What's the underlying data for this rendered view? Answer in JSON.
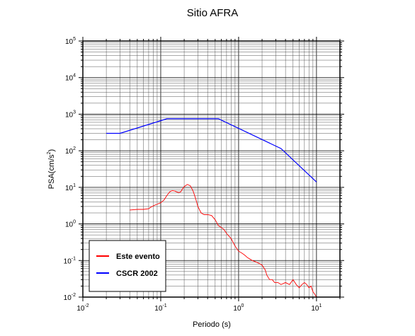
{
  "chart_data": {
    "type": "line",
    "title": "Sitio AFRA",
    "xlabel": "Periodo (s)",
    "ylabel": {
      "base": "PSA(cm/s",
      "sup": "2",
      "tail": ")"
    },
    "x_scale": "log",
    "y_scale": "log",
    "xlim": [
      0.01,
      20
    ],
    "ylim": [
      0.01,
      100000
    ],
    "grid": true,
    "legend_position": "bottom-left",
    "x_ticks": [
      {
        "base": "10",
        "exp": "-2",
        "value": 0.01
      },
      {
        "base": "10",
        "exp": "-1",
        "value": 0.1
      },
      {
        "base": "10",
        "exp": "0",
        "value": 1
      },
      {
        "base": "10",
        "exp": "1",
        "value": 10
      }
    ],
    "y_ticks": [
      {
        "base": "10",
        "exp": "-2",
        "value": 0.01
      },
      {
        "base": "10",
        "exp": "-1",
        "value": 0.1
      },
      {
        "base": "10",
        "exp": "0",
        "value": 1
      },
      {
        "base": "10",
        "exp": "1",
        "value": 10
      },
      {
        "base": "10",
        "exp": "2",
        "value": 100
      },
      {
        "base": "10",
        "exp": "3",
        "value": 1000
      },
      {
        "base": "10",
        "exp": "4",
        "value": 10000
      },
      {
        "base": "10",
        "exp": "5",
        "value": 100000
      }
    ],
    "series": [
      {
        "name": "Este evento",
        "color": "#ff0000",
        "points": [
          [
            0.04,
            2.4
          ],
          [
            0.05,
            2.5
          ],
          [
            0.06,
            2.5
          ],
          [
            0.07,
            2.6
          ],
          [
            0.075,
            2.9
          ],
          [
            0.085,
            3.3
          ],
          [
            0.1,
            3.8
          ],
          [
            0.11,
            4.5
          ],
          [
            0.12,
            6.0
          ],
          [
            0.13,
            7.5
          ],
          [
            0.14,
            8.2
          ],
          [
            0.15,
            8.0
          ],
          [
            0.16,
            7.5
          ],
          [
            0.17,
            7.2
          ],
          [
            0.18,
            7.5
          ],
          [
            0.19,
            9.0
          ],
          [
            0.2,
            10.5
          ],
          [
            0.22,
            12.0
          ],
          [
            0.24,
            11.0
          ],
          [
            0.26,
            8.0
          ],
          [
            0.28,
            5.0
          ],
          [
            0.3,
            3.0
          ],
          [
            0.33,
            2.0
          ],
          [
            0.36,
            1.8
          ],
          [
            0.4,
            1.8
          ],
          [
            0.45,
            1.7
          ],
          [
            0.5,
            1.3
          ],
          [
            0.55,
            0.9
          ],
          [
            0.6,
            0.8
          ],
          [
            0.65,
            0.7
          ],
          [
            0.7,
            0.55
          ],
          [
            0.8,
            0.4
          ],
          [
            0.9,
            0.25
          ],
          [
            1.0,
            0.18
          ],
          [
            1.1,
            0.16
          ],
          [
            1.2,
            0.14
          ],
          [
            1.3,
            0.12
          ],
          [
            1.5,
            0.1
          ],
          [
            1.6,
            0.095
          ],
          [
            1.8,
            0.085
          ],
          [
            2.0,
            0.075
          ],
          [
            2.2,
            0.055
          ],
          [
            2.3,
            0.04
          ],
          [
            2.5,
            0.03
          ],
          [
            2.7,
            0.03
          ],
          [
            2.9,
            0.025
          ],
          [
            3.2,
            0.025
          ],
          [
            3.5,
            0.022
          ],
          [
            4.0,
            0.025
          ],
          [
            4.5,
            0.022
          ],
          [
            5.0,
            0.03
          ],
          [
            5.5,
            0.022
          ],
          [
            6.0,
            0.018
          ],
          [
            6.5,
            0.022
          ],
          [
            7.0,
            0.025
          ],
          [
            7.5,
            0.022
          ],
          [
            8.0,
            0.018
          ],
          [
            8.5,
            0.02
          ],
          [
            9.0,
            0.014
          ],
          [
            9.5,
            0.012
          ],
          [
            10.0,
            0.01
          ]
        ]
      },
      {
        "name": "CSCR 2002",
        "color": "#0000ff",
        "points": [
          [
            0.02,
            300
          ],
          [
            0.03,
            300
          ],
          [
            0.12,
            750
          ],
          [
            0.55,
            750
          ],
          [
            3.5,
            115
          ],
          [
            10.0,
            14
          ]
        ]
      }
    ]
  }
}
